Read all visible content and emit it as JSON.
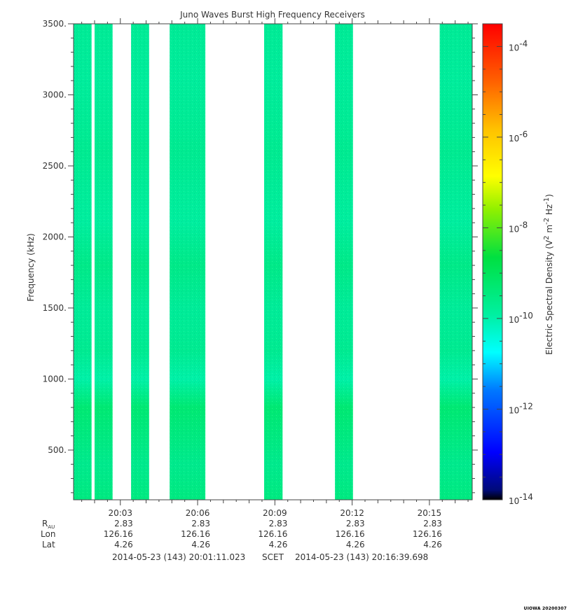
{
  "chart_data": {
    "type": "heatmap",
    "title": "Juno Waves Burst High Frequency Receivers",
    "ylabel": "Frequency (kHz)",
    "ylim": [
      150,
      3500
    ],
    "yticks": [
      500,
      1000,
      1500,
      2000,
      2500,
      3000,
      3500
    ],
    "ytick_labels": [
      "500.",
      "1000.",
      "1500.",
      "2000.",
      "2500.",
      "3000.",
      "3500."
    ],
    "x_time_range": [
      "20:01:11.023",
      "20:16:39.698"
    ],
    "xticks": [
      "20:03",
      "20:06",
      "20:09",
      "20:12",
      "20:15"
    ],
    "colorbar": {
      "label": "Electric Spectral Density (V² m⁻² Hz⁻¹)",
      "scale": "log",
      "range_exp": [
        -14,
        -3.5
      ],
      "tick_exponents": [
        -14,
        -12,
        -10,
        -8,
        -6,
        -4
      ]
    },
    "data_intervals": [
      {
        "start": "20:01:11",
        "end": "20:01:53"
      },
      {
        "start": "20:02:00",
        "end": "20:02:42"
      },
      {
        "start": "20:03:25",
        "end": "20:04:07"
      },
      {
        "start": "20:04:55",
        "end": "20:06:18"
      },
      {
        "start": "20:08:35",
        "end": "20:09:18"
      },
      {
        "start": "20:11:20",
        "end": "20:12:02"
      },
      {
        "start": "20:15:24",
        "end": "20:16:39"
      }
    ],
    "spectral_profile": [
      {
        "freq_khz": 150,
        "log10_density": -9.75
      },
      {
        "freq_khz": 400,
        "log10_density": -9.9
      },
      {
        "freq_khz": 800,
        "log10_density": -9.6
      },
      {
        "freq_khz": 1000,
        "log10_density": -10.3
      },
      {
        "freq_khz": 1200,
        "log10_density": -9.95
      },
      {
        "freq_khz": 1500,
        "log10_density": -10.05
      },
      {
        "freq_khz": 1800,
        "log10_density": -9.85
      },
      {
        "freq_khz": 2100,
        "log10_density": -10.15
      },
      {
        "freq_khz": 2600,
        "log10_density": -9.95
      },
      {
        "freq_khz": 3100,
        "log10_density": -10.1
      },
      {
        "freq_khz": 3500,
        "log10_density": -10.0
      }
    ]
  },
  "ephemeris": {
    "row_labels": {
      "r": "R",
      "r_sub": "AU",
      "lon": "Lon",
      "lat": "Lat"
    },
    "columns": [
      {
        "r": "2.83",
        "lon": "126.16",
        "lat": "4.26"
      },
      {
        "r": "2.83",
        "lon": "126.16",
        "lat": "4.26"
      },
      {
        "r": "2.83",
        "lon": "126.16",
        "lat": "4.26"
      },
      {
        "r": "2.83",
        "lon": "126.16",
        "lat": "4.26"
      },
      {
        "r": "2.83",
        "lon": "126.16",
        "lat": "4.26"
      }
    ]
  },
  "footer": {
    "start": "2014-05-23 (143) 20:01:11.023",
    "mid": "SCET",
    "end": "2014-05-23 (143) 20:16:39.698"
  },
  "stamp": "UIOWA 20200307"
}
